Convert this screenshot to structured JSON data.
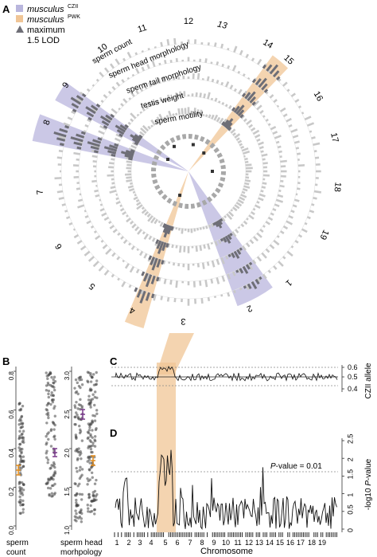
{
  "colors": {
    "czii": "#b9b6dd",
    "pwk": "#f0c596",
    "lod": "#6e6e76",
    "ring_gray": "#b8b8b8",
    "dark_brown": "#8a6f5a",
    "purple_err": "#7a3b8c",
    "orange_err": "#e08a1c"
  },
  "legend": {
    "czii_label": "musculus",
    "czii_sup": "CZII",
    "pwk_label": "musculus",
    "pwk_sup": "PWK",
    "lod_label_1": "maximum",
    "lod_label_2": "1.5 LOD"
  },
  "panel_labels": {
    "a": "A",
    "b": "B",
    "c": "C",
    "d": "D"
  },
  "circos": {
    "chromosomes": [
      "1",
      "2",
      "3",
      "4",
      "5",
      "6",
      "7",
      "8",
      "9",
      "10",
      "11",
      "12",
      "13",
      "14",
      "15",
      "16",
      "17",
      "18",
      "19"
    ],
    "traits": [
      "sperm count",
      "sperm head morphology",
      "sperm tail morphology",
      "testis weight",
      "sperm motility"
    ]
  },
  "panel_b": {
    "count_ticks": [
      "0.0",
      "0.2",
      "0.4",
      "0.6",
      "0.8"
    ],
    "count_label_1": "sperm",
    "count_label_2": "count",
    "head_ticks": [
      "1.0",
      "1.5",
      "2.0",
      "2.5",
      "3.0"
    ],
    "head_label_1": "sperm head",
    "head_label_2": "morhpology"
  },
  "panel_c": {
    "yticks": [
      "0.6",
      "0.5",
      "0.4"
    ],
    "ylabel": "CZII allele"
  },
  "panel_d": {
    "yticks": [
      "0",
      "0.5",
      "1",
      "1.5",
      "2",
      "2.5"
    ],
    "ylabel": "-log10 P-value",
    "threshold_label": "P-value = 0.01",
    "xlabel": "Chromosome",
    "chromosomes": [
      "1",
      "2",
      "3",
      "4",
      "5",
      "6",
      "7",
      "8",
      "9",
      "10",
      "11",
      "12",
      "13",
      "14",
      "15",
      "16",
      "17",
      "18",
      "19"
    ]
  }
}
